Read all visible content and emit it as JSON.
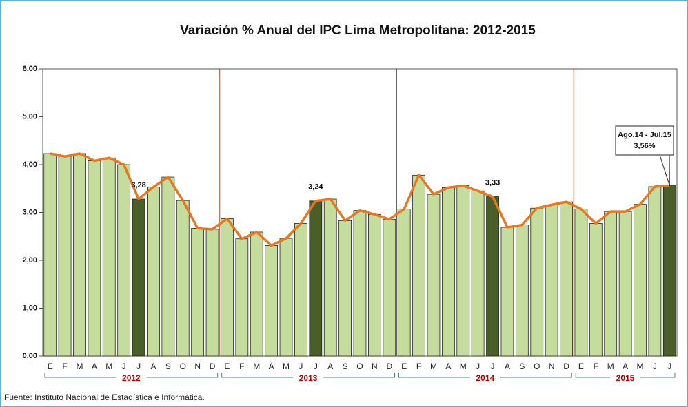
{
  "chart_data": {
    "type": "bar",
    "title": "Variación % Anual del IPC Lima Metropolitana: 2012-2015",
    "source": "Fuente: Instituto Nacional de Estadística e Informática.",
    "groups": [
      {
        "label": "2012",
        "categories": [
          "E",
          "F",
          "M",
          "A",
          "M",
          "J",
          "J",
          "A",
          "S",
          "O",
          "N",
          "D"
        ]
      },
      {
        "label": "2013",
        "categories": [
          "E",
          "F",
          "M",
          "A",
          "M",
          "J",
          "J",
          "A",
          "S",
          "O",
          "N",
          "D"
        ]
      },
      {
        "label": "2014",
        "categories": [
          "E",
          "F",
          "M",
          "A",
          "M",
          "J",
          "J",
          "A",
          "S",
          "O",
          "N",
          "D"
        ]
      },
      {
        "label": "2015",
        "categories": [
          "E",
          "F",
          "M",
          "A",
          "M",
          "J",
          "J"
        ]
      }
    ],
    "values": [
      4.23,
      4.17,
      4.23,
      4.08,
      4.14,
      4.0,
      3.28,
      3.53,
      3.74,
      3.25,
      2.67,
      2.65,
      2.87,
      2.45,
      2.59,
      2.31,
      2.46,
      2.77,
      3.24,
      3.28,
      2.83,
      3.04,
      2.96,
      2.86,
      3.07,
      3.78,
      3.38,
      3.52,
      3.56,
      3.45,
      3.33,
      2.69,
      2.74,
      3.09,
      3.16,
      3.22,
      3.07,
      2.77,
      3.02,
      3.02,
      3.17,
      3.54,
      3.56
    ],
    "value_labels": [
      null,
      null,
      null,
      null,
      null,
      null,
      "3,28",
      null,
      null,
      null,
      null,
      null,
      null,
      null,
      null,
      null,
      null,
      null,
      "3,24",
      null,
      null,
      null,
      null,
      null,
      null,
      null,
      null,
      null,
      null,
      null,
      "3,33",
      null,
      null,
      null,
      null,
      null,
      null,
      null,
      null,
      null,
      null,
      null,
      "3,56%"
    ],
    "colors": [
      "#c4dd9c",
      "#c4dd9c",
      "#c4dd9c",
      "#c4dd9c",
      "#c4dd9c",
      "#c4dd9c",
      "#4a5e2a",
      "#c4dd9c",
      "#c4dd9c",
      "#c4dd9c",
      "#c4dd9c",
      "#c4dd9c",
      "#c4dd9c",
      "#c4dd9c",
      "#c4dd9c",
      "#c4dd9c",
      "#c4dd9c",
      "#c4dd9c",
      "#4a5e2a",
      "#c4dd9c",
      "#c4dd9c",
      "#c4dd9c",
      "#c4dd9c",
      "#c4dd9c",
      "#c4dd9c",
      "#c4dd9c",
      "#c4dd9c",
      "#c4dd9c",
      "#c4dd9c",
      "#c4dd9c",
      "#4a5e2a",
      "#c4dd9c",
      "#c4dd9c",
      "#c4dd9c",
      "#c4dd9c",
      "#c4dd9c",
      "#c4dd9c",
      "#c4dd9c",
      "#c4dd9c",
      "#c4dd9c",
      "#c4dd9c",
      "#c4dd9c",
      "#4a5e2a"
    ],
    "line_color": "#e87722",
    "annotation": "Ago.14 - Jul.15",
    "ylim": [
      0,
      6
    ],
    "yticks": [
      {
        "value": 0,
        "label": "0,00"
      },
      {
        "value": 1,
        "label": "1,00"
      },
      {
        "value": 2,
        "label": "2,00"
      },
      {
        "value": 3,
        "label": "3,00"
      },
      {
        "value": 4,
        "label": "4,00"
      },
      {
        "value": 5,
        "label": "5,00"
      },
      {
        "value": 6,
        "label": "6,00"
      }
    ],
    "year_color": "#c00000"
  }
}
